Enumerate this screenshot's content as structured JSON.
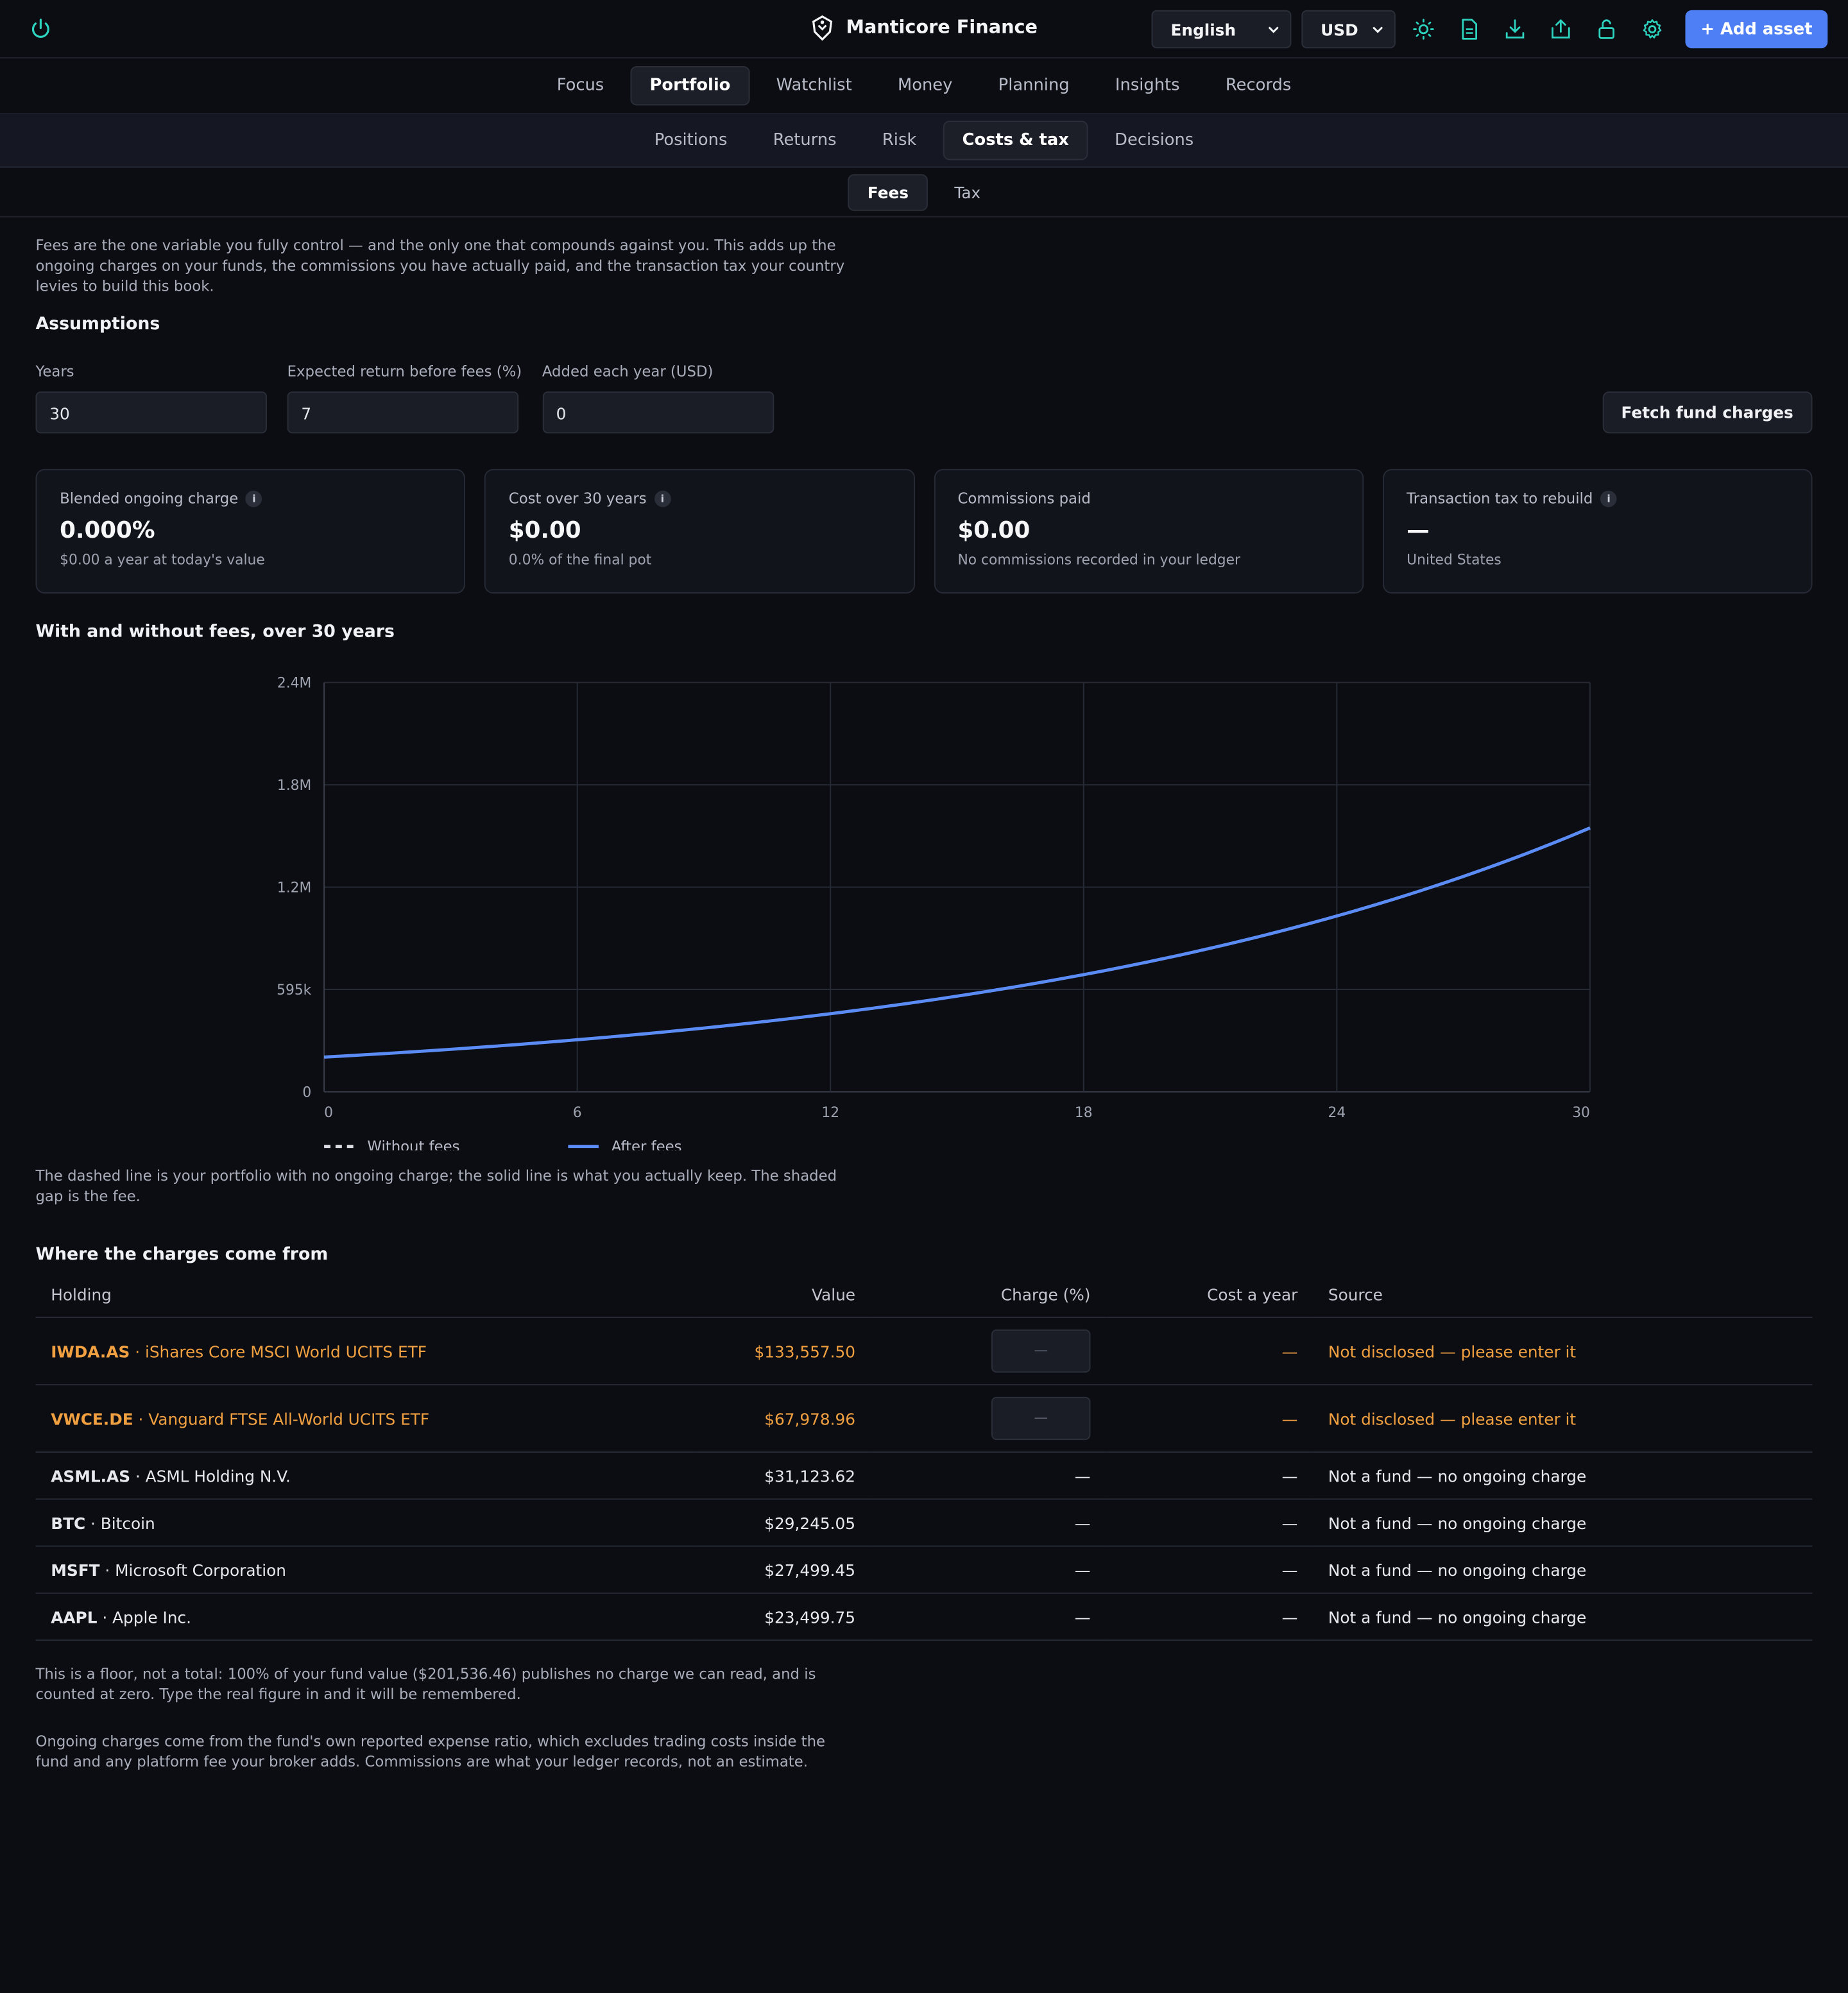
{
  "app": {
    "title": "Manticore Finance"
  },
  "header": {
    "language": "English",
    "currency": "USD",
    "add_asset": "+ Add asset",
    "icons": [
      "power-icon",
      "sun-icon",
      "document-icon",
      "download-icon",
      "export-icon",
      "unlock-icon",
      "gear-icon"
    ],
    "accent": "#4f7ff5",
    "icon_color": "#2dd4bf"
  },
  "nav": {
    "main": [
      "Focus",
      "Portfolio",
      "Watchlist",
      "Money",
      "Planning",
      "Insights",
      "Records"
    ],
    "main_active": "Portfolio",
    "sub": [
      "Positions",
      "Returns",
      "Risk",
      "Costs & tax",
      "Decisions"
    ],
    "sub_active": "Costs & tax",
    "third": [
      "Fees",
      "Tax"
    ],
    "third_active": "Fees"
  },
  "intro": "Fees are the one variable you fully control — and the only one that compounds against you. This adds up the ongoing charges on your funds, the commissions you have actually paid, and the transaction tax your country levies to build this book.",
  "assumptions": {
    "title": "Assumptions",
    "years_label": "Years",
    "years": "30",
    "return_label": "Expected return before fees (%)",
    "return": "7",
    "added_label": "Added each year (USD)",
    "added": "0",
    "fetch_button": "Fetch fund charges"
  },
  "cards": [
    {
      "label": "Blended ongoing charge",
      "info": "i",
      "value": "0.000%",
      "sub": "$0.00 a year at today's value"
    },
    {
      "label": "Cost over 30 years",
      "info": "i",
      "value": "$0.00",
      "sub": "0.0% of the final pot"
    },
    {
      "label": "Commissions paid",
      "value": "$0.00",
      "sub": "No commissions recorded in your ledger"
    },
    {
      "label": "Transaction tax to rebuild",
      "info": "i",
      "value": "—",
      "sub": "United States"
    }
  ],
  "chart": {
    "title": "With and without fees, over 30 years",
    "caption": "The dashed line is your portfolio with no ongoing charge; the solid line is what you actually keep. The shaded gap is the fee."
  },
  "chart_data": {
    "type": "line",
    "x_ticks": [
      "0",
      "6",
      "12",
      "18",
      "24",
      "30"
    ],
    "y_ticks": [
      "0",
      "595k",
      "1.2M",
      "1.8M",
      "2.4M"
    ],
    "xlim": [
      0,
      30
    ],
    "ylim": [
      0,
      2380000
    ],
    "grid": true,
    "legend_position": "bottom-left",
    "series": [
      {
        "name": "Without fees",
        "style": "dashed",
        "color": "#d9dbe2",
        "start": 201536.46,
        "rate": 0.07
      },
      {
        "name": "After fees",
        "style": "solid",
        "color": "#5b8cf5",
        "start": 201536.46,
        "rate": 0.07
      }
    ]
  },
  "charges": {
    "title": "Where the charges come from",
    "headers": {
      "holding": "Holding",
      "value": "Value",
      "charge": "Charge (%)",
      "cost": "Cost a year",
      "source": "Source"
    },
    "rows": [
      {
        "ticker": "IWDA.AS",
        "name": "iShares Core MSCI World UCITS ETF",
        "value": "$133,557.50",
        "charge_placeholder": "—",
        "cost": "—",
        "source": "Not disclosed — please enter it",
        "warn": true
      },
      {
        "ticker": "VWCE.DE",
        "name": "Vanguard FTSE All-World UCITS ETF",
        "value": "$67,978.96",
        "charge_placeholder": "—",
        "cost": "—",
        "source": "Not disclosed — please enter it",
        "warn": true
      },
      {
        "ticker": "ASML.AS",
        "name": "ASML Holding N.V.",
        "value": "$31,123.62",
        "charge": "—",
        "cost": "—",
        "source": "Not a fund — no ongoing charge"
      },
      {
        "ticker": "BTC",
        "name": "Bitcoin",
        "value": "$29,245.05",
        "charge": "—",
        "cost": "—",
        "source": "Not a fund — no ongoing charge"
      },
      {
        "ticker": "MSFT",
        "name": "Microsoft Corporation",
        "value": "$27,499.45",
        "charge": "—",
        "cost": "—",
        "source": "Not a fund — no ongoing charge"
      },
      {
        "ticker": "AAPL",
        "name": "Apple Inc.",
        "value": "$23,499.75",
        "charge": "—",
        "cost": "—",
        "source": "Not a fund — no ongoing charge"
      }
    ],
    "separator": " · ",
    "note": "This is a floor, not a total: 100% of your fund value ($201,536.46) publishes no charge we can read, and is counted at zero. Type the real figure in and it will be remembered.",
    "footnote": "Ongoing charges come from the fund's own reported expense ratio, which excludes trading costs inside the fund and any platform fee your broker adds. Commissions are what your ledger records, not an estimate."
  }
}
